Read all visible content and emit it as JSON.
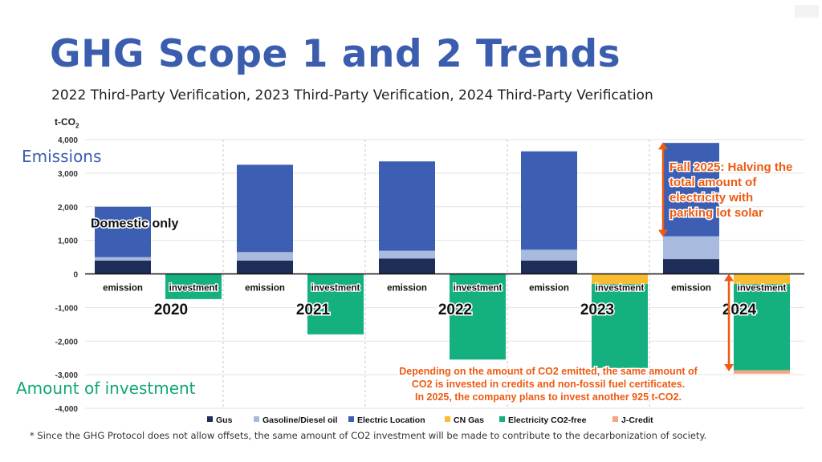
{
  "page": {
    "title": "GHG Scope 1 and 2 Trends",
    "subtitle": "2022 Third-Party Verification, 2023 Third-Party Verification, 2024 Third-Party Verification",
    "side_label_emissions": "Emissions",
    "side_label_investment": "Amount of investment",
    "footnote": "* Since the GHG Protocol does not allow offsets, the same amount of CO2 investment will be made to contribute to the decarbonization of society."
  },
  "chart_data": {
    "type": "bar",
    "stacked": true,
    "y_unit_prefix": "t-CO",
    "y_unit_sub": "2",
    "ylim": [
      -4000,
      4000
    ],
    "yticks": [
      "4,000",
      "3,000",
      "2,000",
      "1,000",
      "0",
      "-1,000",
      "-2,000",
      "-3,000",
      "-4,000"
    ],
    "ytick_values": [
      4000,
      3000,
      2000,
      1000,
      0,
      -1000,
      -2000,
      -3000,
      -4000
    ],
    "years": [
      "2020",
      "2021",
      "2022",
      "2023",
      "2024"
    ],
    "bar_labels": [
      "emission",
      "investment"
    ],
    "series": [
      {
        "name": "Gus",
        "color": "#1f2e58",
        "emission": [
          400,
          400,
          460,
          400,
          440
        ],
        "investment": [
          0,
          0,
          0,
          0,
          0
        ]
      },
      {
        "name": "Gasoline/Diesel oil",
        "color": "#a9badf",
        "emission": [
          100,
          250,
          230,
          320,
          680
        ],
        "investment": [
          0,
          0,
          0,
          0,
          0
        ]
      },
      {
        "name": "Electric Location",
        "color": "#3c5fb4",
        "emission": [
          1500,
          2600,
          2660,
          2930,
          2780
        ],
        "investment": [
          0,
          0,
          0,
          0,
          0
        ]
      },
      {
        "name": "CN Gas",
        "color": "#f8bc30",
        "emission": [
          0,
          0,
          0,
          0,
          0
        ],
        "investment": [
          0,
          0,
          0,
          -300,
          -300
        ]
      },
      {
        "name": "Electricity CO2-free",
        "color": "#14b07f",
        "emission": [
          0,
          0,
          0,
          0,
          0
        ],
        "investment": [
          -750,
          -1800,
          -2550,
          -2500,
          -2570
        ]
      },
      {
        "name": "J-Credit",
        "color": "#f4a582",
        "emission": [
          0,
          0,
          0,
          0,
          0
        ],
        "investment": [
          0,
          0,
          0,
          0,
          -100
        ]
      }
    ],
    "legend_position": "bottom",
    "grid": true,
    "annotations": {
      "domestic": "Domestic only",
      "fall2025_lines": [
        "Fall 2025: Halving the",
        "total amount of",
        "electricity with",
        "parking lot solar"
      ],
      "invest_lines": [
        "Depending on the amount of CO2 emitted, the same amount of",
        "CO2 is invested in credits and non-fossil fuel certificates.",
        "In 2025, the company plans to invest another 925 t-CO2."
      ],
      "annotation_color": "#ee5a12"
    }
  }
}
